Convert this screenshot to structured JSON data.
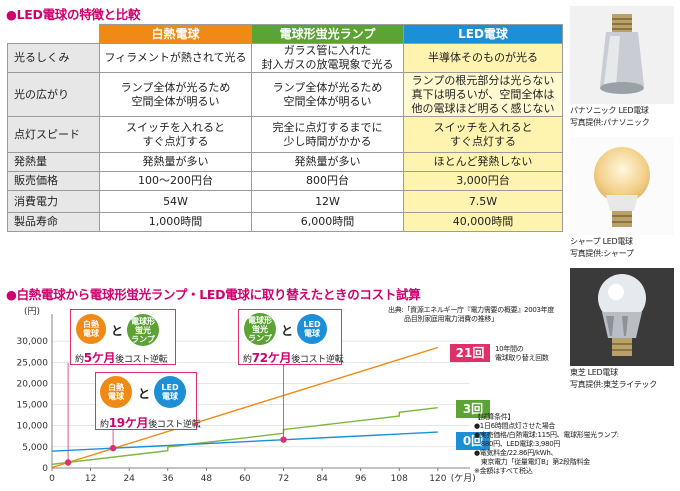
{
  "section1_title": "LED電球の特徴と比較",
  "section2_title": "白熱電球から電球形蛍光ランプ・LED電球に取り替えたときのコスト試算",
  "table": {
    "headers": [
      "白熱電球",
      "電球形蛍光ランプ",
      "LED電球"
    ],
    "rows": [
      {
        "label": "光るしくみ",
        "cells": [
          "フィラメントが熱されて光る",
          "ガラス管に入れた\n封入ガスの放電現象で光る",
          "半導体そのものが光る"
        ]
      },
      {
        "label": "光の広がり",
        "cells": [
          "ランプ全体が光るため\n空間全体が明るい",
          "ランプ全体が光るため\n空間全体が明るい",
          "ランプの根元部分は光らない\n真下は明るいが、空間全体は\n他の電球ほど明るく感じない"
        ]
      },
      {
        "label": "点灯スピード",
        "cells": [
          "スイッチを入れると\nすぐ点灯する",
          "完全に点灯するまでに\n少し時間がかかる",
          "スイッチを入れると\nすぐ点灯する"
        ]
      },
      {
        "label": "発熱量",
        "cells": [
          "発熱量が多い",
          "発熱量が多い",
          "ほとんど発熱しない"
        ]
      },
      {
        "label": "販売価格",
        "cells": [
          "100〜200円台",
          "800円台",
          "3,000円台"
        ]
      },
      {
        "label": "消費電力",
        "cells": [
          "54W",
          "12W",
          "7.5W"
        ]
      },
      {
        "label": "製品寿命",
        "cells": [
          "1,000時間",
          "6,000時間",
          "40,000時間"
        ]
      }
    ]
  },
  "photos": [
    {
      "caption1": "パナソニック LED電球",
      "caption2": "写真提供:パナソニック"
    },
    {
      "caption1": "シャープ LED電球",
      "caption2": "写真提供:シャープ"
    },
    {
      "caption1": "東芝 LED電球",
      "caption2": "写真提供:東芝ライテック"
    }
  ],
  "callouts": {
    "a": {
      "left": "白熱\n電球",
      "right": "電球形\n蛍光\nランプ",
      "and": "と",
      "prefix": "約",
      "months": "5ケ月",
      "suffix": "後コスト逆転"
    },
    "b": {
      "left": "白熱\n電球",
      "right": "LED\n電球",
      "and": "と",
      "prefix": "約",
      "months": "19ケ月",
      "suffix": "後コスト逆転"
    },
    "c": {
      "left": "電球形\n蛍光\nランプ",
      "right": "LED\n電球",
      "and": "と",
      "prefix": "約",
      "months": "72ケ月",
      "suffix": "後コスト逆転"
    }
  },
  "source_note": [
    "出典:「資源エネルギー庁『電力需要の概要』2003年度",
    "品目別家庭用電力消費の推移」"
  ],
  "tags": {
    "inc": {
      "text": "21回",
      "color": "#e0306a"
    },
    "flu": {
      "text": "3回",
      "color": "#5aa334"
    },
    "led": {
      "text": "0回",
      "color": "#1d8fd6"
    }
  },
  "tag_note": [
    "10年間の",
    "電球取り替え回数"
  ],
  "conditions": [
    "【試算条件】",
    "●1日6時間点灯させた場合",
    "●実売価格/白熱電球:115円、電球形蛍光ランプ:",
    "　880円、LED電球:3,980円",
    "●電気料金/22.86円/kWh、",
    "　東京電力「従量電灯B」第2段階料金",
    "※金額はすべて税込"
  ],
  "chart_data": {
    "type": "line",
    "title": "白熱電球から電球形蛍光ランプ・LED電球に取り替えたときのコスト試算",
    "xlabel": "(ケ月)",
    "ylabel": "(円)",
    "xlim": [
      0,
      130
    ],
    "ylim": [
      0,
      35000
    ],
    "xticks": [
      0,
      12,
      24,
      36,
      48,
      60,
      72,
      84,
      96,
      108,
      120
    ],
    "yticks": [
      0,
      5000,
      10000,
      15000,
      20000,
      25000,
      30000
    ],
    "x_unit": "(ケ月)",
    "y_unit": "(円)",
    "series": [
      {
        "key": "inc",
        "color": "#ef8a16",
        "points": [
          [
            0,
            115
          ],
          [
            120,
            28500
          ]
        ],
        "replacements": 21
      },
      {
        "key": "flu",
        "color": "#7ab83a",
        "points": [
          [
            0,
            880
          ],
          [
            36,
            4100
          ],
          [
            36,
            4980
          ],
          [
            72,
            8200
          ],
          [
            72,
            9080
          ],
          [
            108,
            12300
          ],
          [
            108,
            13180
          ],
          [
            120,
            14250
          ]
        ],
        "replacements": 3
      },
      {
        "key": "led",
        "color": "#1d8fd6",
        "points": [
          [
            0,
            3980
          ],
          [
            120,
            8500
          ]
        ],
        "replacements": 0
      }
    ],
    "crossings": [
      {
        "x": 5,
        "y": 1300
      },
      {
        "x": 19,
        "y": 4700
      },
      {
        "x": 72,
        "y": 6700
      }
    ]
  }
}
